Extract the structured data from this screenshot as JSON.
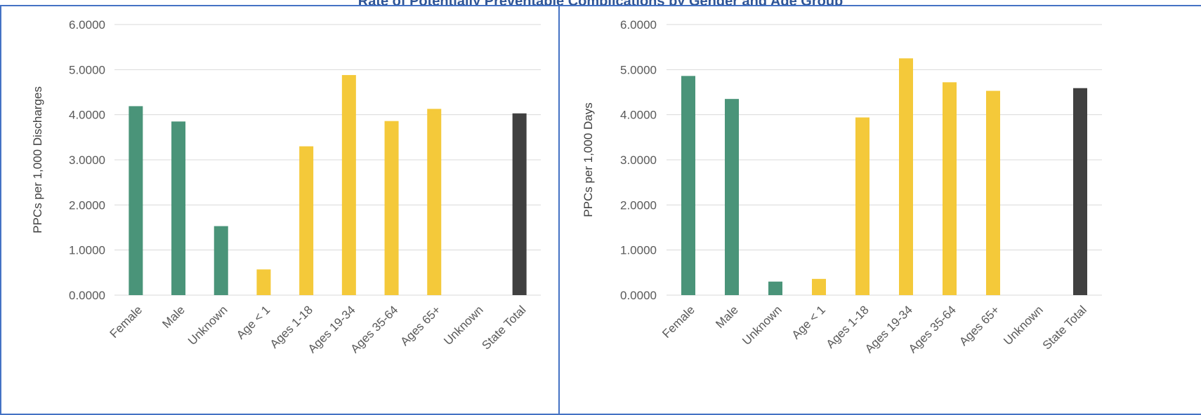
{
  "title": "Rate of Potentially Preventable Complications by Gender and Age Group",
  "colors": {
    "gender": "#4a9479",
    "age": "#f4c93a",
    "total": "#404040",
    "grid": "#d9d9d9",
    "border": "#4472c4"
  },
  "chart_data": [
    {
      "type": "bar",
      "categories": [
        "Female",
        "Male",
        "Unknown",
        "Age < 1",
        "Ages 1-18",
        "Ages 19-34",
        "Ages 35-64",
        "Ages 65+",
        "Unknown",
        "State Total"
      ],
      "groups": [
        "gender",
        "gender",
        "gender",
        "age",
        "age",
        "age",
        "age",
        "age",
        "age",
        "total"
      ],
      "values": [
        4.19,
        3.85,
        1.53,
        0.57,
        3.3,
        4.88,
        3.86,
        4.13,
        0.0,
        4.03
      ],
      "ylabel": "PPCs per 1,000 Discharges",
      "ylim": [
        0,
        6
      ],
      "yticks": [
        "0.0000",
        "1.0000",
        "2.0000",
        "3.0000",
        "4.0000",
        "5.0000",
        "6.0000"
      ],
      "grid": true
    },
    {
      "type": "bar",
      "categories": [
        "Female",
        "Male",
        "Unknown",
        "Age < 1",
        "Ages 1-18",
        "Ages 19-34",
        "Ages 35-64",
        "Ages 65+",
        "Unknown",
        "State Total"
      ],
      "groups": [
        "gender",
        "gender",
        "gender",
        "age",
        "age",
        "age",
        "age",
        "age",
        "age",
        "total"
      ],
      "values": [
        4.86,
        4.35,
        0.3,
        0.36,
        3.94,
        5.25,
        4.72,
        4.53,
        0.0,
        4.59
      ],
      "ylabel": "PPCs per 1,000 Days",
      "ylim": [
        0,
        6
      ],
      "yticks": [
        "0.0000",
        "1.0000",
        "2.0000",
        "3.0000",
        "4.0000",
        "5.0000",
        "6.0000"
      ],
      "grid": true
    }
  ]
}
